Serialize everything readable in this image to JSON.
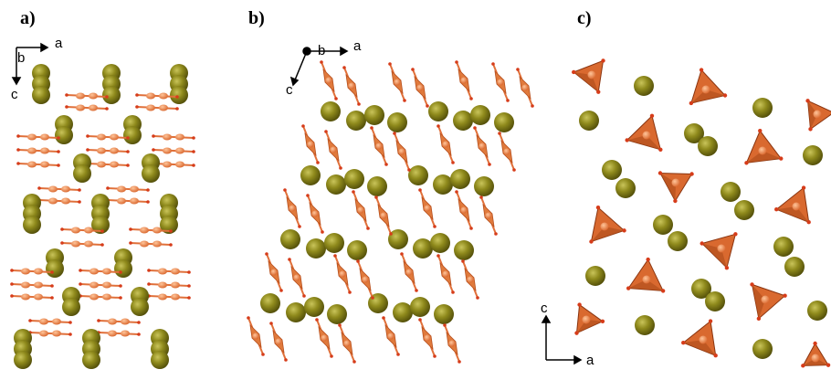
{
  "panels": [
    {
      "label": "a)",
      "axes": {
        "a": "a",
        "b": "b",
        "c": "c"
      }
    },
    {
      "label": "b)",
      "axes": {
        "a": "a",
        "b": "b",
        "c": "c"
      }
    },
    {
      "label": "c)",
      "axes": {
        "a": "a",
        "c": "c"
      }
    }
  ]
}
